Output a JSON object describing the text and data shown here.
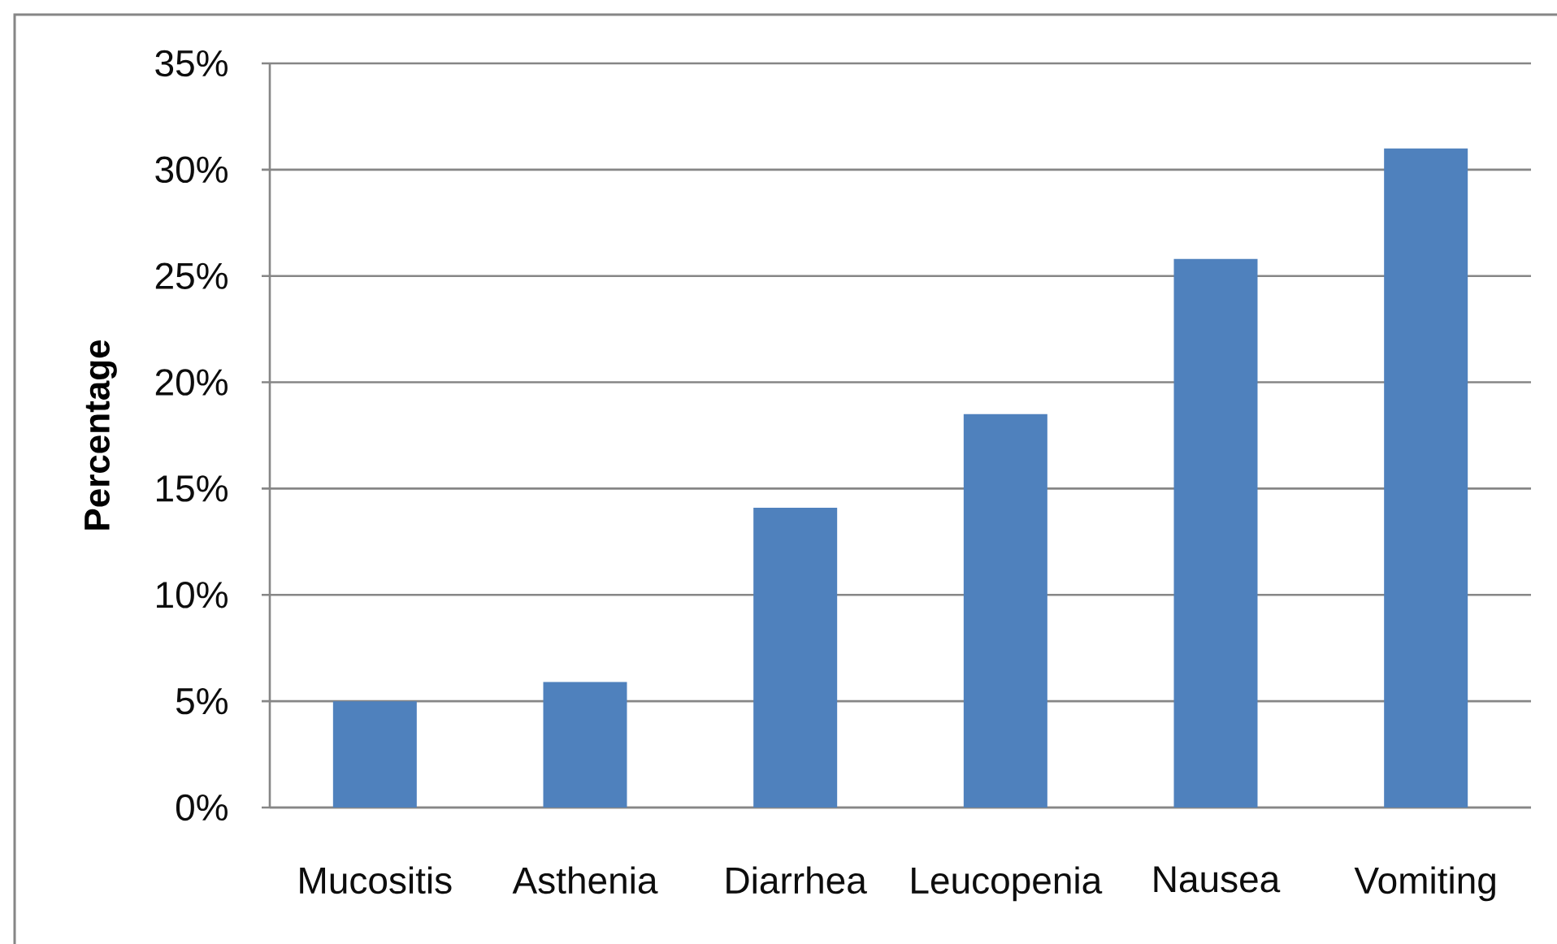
{
  "chart_data": {
    "type": "bar",
    "ylabel": "Percentage",
    "categories": [
      "Mucositis",
      "Asthenia",
      "Diarrhea",
      "Leucopenia",
      "Nausea",
      "Vomiting"
    ],
    "values": [
      5,
      5.9,
      14.1,
      18.5,
      25.8,
      31
    ],
    "color": "#4f81bd",
    "ylim": [
      0,
      35
    ],
    "yticks": [
      {
        "value": 0,
        "label": "0%"
      },
      {
        "value": 5,
        "label": "5%"
      },
      {
        "value": 10,
        "label": "10%"
      },
      {
        "value": 15,
        "label": "15%"
      },
      {
        "value": 20,
        "label": "20%"
      },
      {
        "value": 25,
        "label": "25%"
      },
      {
        "value": 30,
        "label": "30%"
      },
      {
        "value": 35,
        "label": "35%"
      }
    ],
    "grid": "y"
  }
}
